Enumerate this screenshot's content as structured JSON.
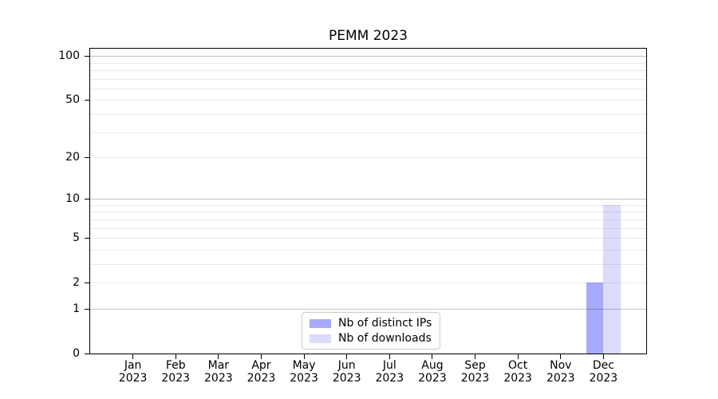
{
  "chart_data": {
    "type": "bar",
    "title": "PEMM 2023",
    "categories": [
      "Jan",
      "Feb",
      "Mar",
      "Apr",
      "May",
      "Jun",
      "Jul",
      "Aug",
      "Sep",
      "Oct",
      "Nov",
      "Dec"
    ],
    "category_year": "2023",
    "series": [
      {
        "name": "Nb of distinct IPs",
        "color": "#a7aafa",
        "values": [
          0,
          0,
          0,
          0,
          0,
          0,
          0,
          0,
          0,
          0,
          0,
          2
        ]
      },
      {
        "name": "Nb of downloads",
        "color": "#dadcfa",
        "values": [
          0,
          0,
          0,
          0,
          0,
          0,
          0,
          0,
          0,
          0,
          0,
          9
        ]
      }
    ],
    "y_scale": "log1p",
    "ylim": [
      0,
      113
    ],
    "y_ticks": [
      0,
      1,
      2,
      5,
      10,
      20,
      50,
      100
    ],
    "y_gridlines_minor": [
      2,
      3,
      4,
      5,
      6,
      7,
      8,
      9,
      20,
      30,
      40,
      50,
      60,
      70,
      80,
      90
    ],
    "y_gridlines_major": [
      1,
      10,
      100
    ],
    "grid": true,
    "legend_position": "lower center",
    "xlabel": "",
    "ylabel": ""
  },
  "colors": {
    "spine": "#000000",
    "text": "#000000",
    "background": "#ffffff",
    "legend_border": "#cccccc"
  }
}
